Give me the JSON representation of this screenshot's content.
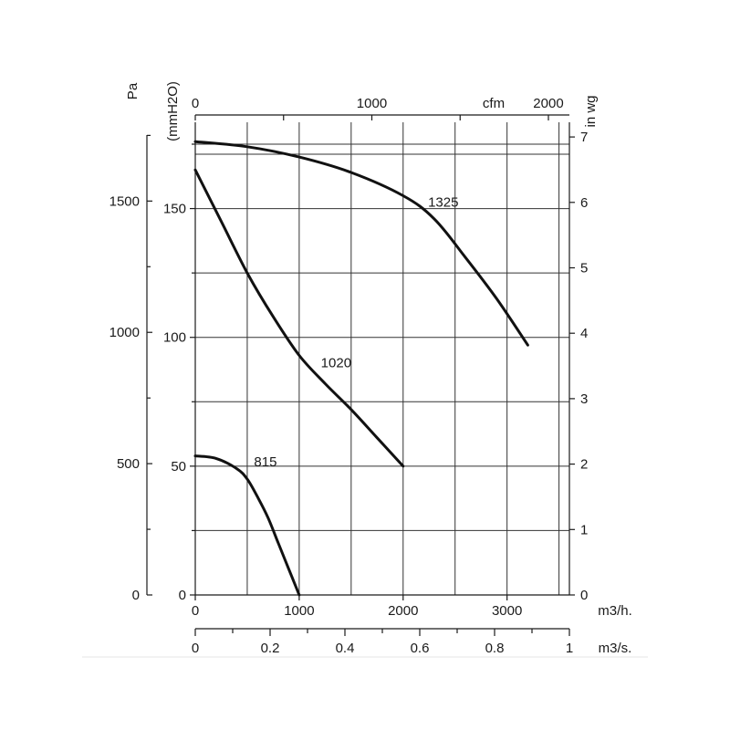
{
  "chart_data": {
    "type": "line",
    "title": "",
    "grid": true,
    "x_axes": {
      "bottom_primary": {
        "unit": "m3/h.",
        "range": [
          0,
          3600
        ],
        "ticks": [
          0,
          1000,
          2000,
          3000
        ]
      },
      "bottom_secondary": {
        "unit": "m3/s.",
        "range": [
          0,
          1
        ],
        "ticks": [
          "0",
          "0.2",
          "0.4",
          "0.6",
          "0.8",
          "1"
        ]
      },
      "top": {
        "unit": "cfm",
        "range": [
          0,
          2119
        ],
        "ticks": [
          "0",
          "1000",
          "2000"
        ]
      }
    },
    "y_axes": {
      "left_pa": {
        "unit": "Pa",
        "range": [
          0,
          1800
        ],
        "ticks": [
          "0",
          "500",
          "1000",
          "1500"
        ]
      },
      "left_mmh2o": {
        "unit": "(mmH2O)",
        "range": [
          0,
          183.5
        ],
        "ticks": [
          "0",
          "50",
          "100",
          "150"
        ]
      },
      "right_inwg": {
        "unit": "in wg",
        "range": [
          0,
          7.23
        ],
        "ticks": [
          "0",
          "1",
          "2",
          "3",
          "4",
          "5",
          "6",
          "7"
        ]
      }
    },
    "series": [
      {
        "name": "815",
        "x": [
          0,
          200,
          400,
          500,
          600,
          700,
          800,
          900,
          1000
        ],
        "y": [
          54,
          53,
          49,
          45,
          38,
          30,
          20,
          10,
          0
        ]
      },
      {
        "name": "1020",
        "x": [
          0,
          250,
          500,
          750,
          1000,
          1250,
          1500,
          1750,
          2000
        ],
        "y": [
          165,
          145,
          125,
          108,
          93,
          82,
          72,
          61,
          50
        ]
      },
      {
        "name": "1325",
        "x": [
          0,
          500,
          1000,
          1500,
          2000,
          2300,
          2600,
          2900,
          3200
        ],
        "y": [
          176,
          174,
          170,
          164,
          155,
          146,
          131,
          115,
          97
        ]
      }
    ]
  }
}
